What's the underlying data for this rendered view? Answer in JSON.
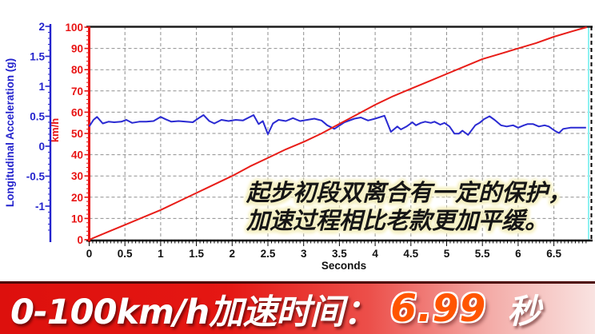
{
  "chart": {
    "y_left_axis": {
      "label": "Longitudinal Acceleration (g)",
      "ticks": [
        "2",
        "1.5",
        "1",
        "0.5",
        "0",
        "-0.5",
        "-1"
      ],
      "color": "#2323cd"
    },
    "y_right_axis": {
      "label": "km/h",
      "ticks": [
        "100",
        "90",
        "80",
        "70",
        "60",
        "50",
        "40",
        "30",
        "20",
        "10",
        "0"
      ],
      "color": "#e81414"
    },
    "x_axis": {
      "label": "Seconds",
      "ticks": [
        "0",
        "0.5",
        "1",
        "1.5",
        "2",
        "2.5",
        "3",
        "3.5",
        "4",
        "4.5",
        "5",
        "5.5",
        "6",
        "6.5"
      ]
    },
    "grid_color": "#8f8f8f",
    "border_color": "#1c1c1c",
    "cursor_line_color": "#8df2f2",
    "annotation": {
      "line1": "起步初段双离合有一定的保护，",
      "line2": "加速过程相比老款更加平缓。",
      "glow_color": "#f5f0c3"
    }
  },
  "chart_data": {
    "type": "line",
    "title": "",
    "xlabel": "Seconds",
    "x_range": [
      0,
      6.96
    ],
    "grid": "dashed",
    "legend": "none",
    "series": [
      {
        "name": "speed",
        "unit": "km/h",
        "axis": "right",
        "color": "#e81d18",
        "ylim": [
          0,
          100
        ],
        "x": [
          0,
          0.25,
          0.5,
          0.75,
          1,
          1.25,
          1.5,
          1.75,
          2,
          2.25,
          2.5,
          2.75,
          3,
          3.25,
          3.5,
          3.75,
          4,
          4.25,
          4.5,
          4.75,
          5,
          5.25,
          5.5,
          5.75,
          6,
          6.25,
          6.5,
          6.75,
          6.96
        ],
        "y": [
          0,
          3.5,
          7,
          10.5,
          14,
          18,
          22,
          26,
          30,
          34.5,
          38.5,
          42.5,
          46,
          50,
          54.5,
          59,
          63.5,
          67.5,
          71,
          74.5,
          78,
          81.5,
          85,
          87.5,
          90,
          92.5,
          95.5,
          98,
          100
        ]
      },
      {
        "name": "longitudinal_acceleration",
        "unit": "g",
        "axis": "left",
        "color": "#2a2ad2",
        "ylim": [
          -1.5,
          2
        ],
        "x": [
          0,
          0.06,
          0.11,
          0.19,
          0.27,
          0.35,
          0.45,
          0.52,
          0.6,
          0.7,
          0.8,
          0.9,
          1.0,
          1.07,
          1.15,
          1.25,
          1.35,
          1.45,
          1.52,
          1.6,
          1.68,
          1.75,
          1.85,
          1.95,
          2.05,
          2.15,
          2.3,
          2.37,
          2.43,
          2.5,
          2.57,
          2.65,
          2.75,
          2.85,
          2.95,
          3.05,
          3.15,
          3.25,
          3.33,
          3.43,
          3.57,
          3.71,
          3.8,
          3.9,
          4.0,
          4.13,
          4.22,
          4.31,
          4.36,
          4.44,
          4.52,
          4.57,
          4.64,
          4.7,
          4.78,
          4.83,
          4.91,
          4.97,
          5.04,
          5.11,
          5.17,
          5.22,
          5.3,
          5.4,
          5.46,
          5.52,
          5.6,
          5.67,
          5.76,
          5.84,
          5.93,
          6.0,
          6.08,
          6.13,
          6.21,
          6.29,
          6.37,
          6.43,
          6.51,
          6.57,
          6.63,
          6.73,
          6.85,
          6.95
        ],
        "y": [
          0.33,
          0.44,
          0.49,
          0.38,
          0.41,
          0.4,
          0.41,
          0.44,
          0.39,
          0.41,
          0.41,
          0.42,
          0.49,
          0.45,
          0.41,
          0.42,
          0.41,
          0.4,
          0.46,
          0.52,
          0.42,
          0.38,
          0.44,
          0.42,
          0.44,
          0.43,
          0.52,
          0.37,
          0.42,
          0.2,
          0.38,
          0.44,
          0.42,
          0.47,
          0.42,
          0.44,
          0.46,
          0.43,
          0.35,
          0.29,
          0.4,
          0.46,
          0.48,
          0.43,
          0.46,
          0.51,
          0.24,
          0.33,
          0.28,
          0.33,
          0.4,
          0.35,
          0.39,
          0.41,
          0.39,
          0.41,
          0.36,
          0.39,
          0.33,
          0.21,
          0.21,
          0.26,
          0.19,
          0.35,
          0.39,
          0.45,
          0.5,
          0.44,
          0.35,
          0.33,
          0.35,
          0.31,
          0.35,
          0.37,
          0.37,
          0.33,
          0.35,
          0.33,
          0.26,
          0.22,
          0.29,
          0.31,
          0.31,
          0.31
        ]
      }
    ]
  },
  "banner": {
    "label": "0-100km/h加速时间：",
    "value": "6.99",
    "unit": "秒",
    "value_color": "#ff5500",
    "background_left": "#dd100d",
    "background_right": "#f9e3e1"
  }
}
